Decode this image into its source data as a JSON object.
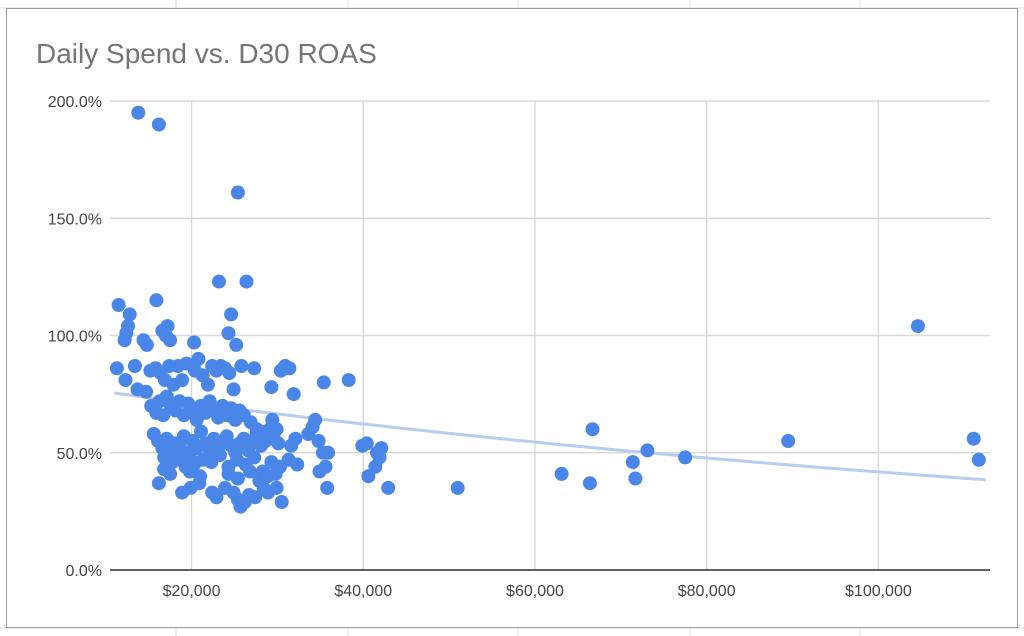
{
  "chart_data": {
    "type": "scatter",
    "title": "Daily Spend vs. D30 ROAS",
    "xlabel": "",
    "ylabel": "",
    "x_ticks": [
      "$20,000",
      "$40,000",
      "$60,000",
      "$80,000",
      "$100,000"
    ],
    "x_tick_values": [
      20000,
      40000,
      60000,
      80000,
      100000
    ],
    "y_ticks": [
      "0.0%",
      "50.0%",
      "100.0%",
      "150.0%",
      "200.0%"
    ],
    "y_tick_values": [
      0,
      50,
      100,
      150,
      200
    ],
    "xlim": [
      10500,
      113000
    ],
    "ylim": [
      0,
      200
    ],
    "grid": true,
    "legend": "none",
    "colors": {
      "points": "#4a86e8",
      "trendline": "#b7cdf2",
      "grid": "#d9d9d9",
      "axis": "#333333",
      "title": "#757575"
    },
    "trendline": {
      "type": "exponential",
      "x": [
        11000,
        112500
      ],
      "y": [
        75.5,
        38.5
      ]
    },
    "series": [
      {
        "points": [
          [
            13800,
            195
          ],
          [
            16200,
            190
          ],
          [
            25400,
            161
          ],
          [
            23200,
            123
          ],
          [
            26400,
            123
          ],
          [
            24600,
            109
          ],
          [
            24300,
            101
          ],
          [
            25200,
            96
          ],
          [
            20300,
            97
          ],
          [
            11500,
            113
          ],
          [
            12800,
            109
          ],
          [
            12600,
            104
          ],
          [
            12400,
            101
          ],
          [
            12200,
            98
          ],
          [
            14400,
            98
          ],
          [
            14800,
            96
          ],
          [
            15900,
            115
          ],
          [
            16600,
            102
          ],
          [
            17200,
            104
          ],
          [
            17500,
            98
          ],
          [
            17000,
            100
          ],
          [
            11300,
            86
          ],
          [
            12300,
            81
          ],
          [
            13400,
            87
          ],
          [
            13700,
            77
          ],
          [
            14700,
            76
          ],
          [
            15200,
            85
          ],
          [
            15800,
            86
          ],
          [
            16400,
            84
          ],
          [
            16900,
            81
          ],
          [
            17400,
            87
          ],
          [
            17900,
            79
          ],
          [
            18400,
            87
          ],
          [
            18900,
            81
          ],
          [
            19400,
            88
          ],
          [
            20400,
            85
          ],
          [
            20800,
            90
          ],
          [
            21300,
            83
          ],
          [
            21900,
            79
          ],
          [
            22400,
            87
          ],
          [
            22900,
            85
          ],
          [
            23400,
            87
          ],
          [
            23900,
            86
          ],
          [
            24400,
            84
          ],
          [
            24900,
            77
          ],
          [
            25800,
            87
          ],
          [
            27300,
            86
          ],
          [
            29300,
            78
          ],
          [
            30400,
            85
          ],
          [
            30900,
            87
          ],
          [
            31400,
            86
          ],
          [
            31900,
            75
          ],
          [
            35400,
            80
          ],
          [
            38300,
            81
          ],
          [
            15300,
            70
          ],
          [
            15900,
            67
          ],
          [
            16300,
            72
          ],
          [
            16700,
            66
          ],
          [
            17100,
            74
          ],
          [
            17600,
            70
          ],
          [
            18100,
            68
          ],
          [
            18600,
            72
          ],
          [
            19100,
            66
          ],
          [
            19600,
            71
          ],
          [
            20100,
            68
          ],
          [
            20600,
            64
          ],
          [
            21100,
            70
          ],
          [
            21600,
            67
          ],
          [
            22100,
            72
          ],
          [
            22600,
            68
          ],
          [
            23100,
            65
          ],
          [
            23600,
            70
          ],
          [
            24100,
            66
          ],
          [
            24600,
            69
          ],
          [
            25100,
            64
          ],
          [
            25600,
            68
          ],
          [
            26100,
            66
          ],
          [
            26900,
            63
          ],
          [
            27600,
            60
          ],
          [
            28600,
            59
          ],
          [
            29400,
            64
          ],
          [
            29900,
            60
          ],
          [
            15600,
            58
          ],
          [
            16100,
            55
          ],
          [
            16600,
            52
          ],
          [
            17100,
            56
          ],
          [
            17600,
            50
          ],
          [
            18100,
            54
          ],
          [
            18600,
            53
          ],
          [
            19100,
            57
          ],
          [
            19600,
            50
          ],
          [
            20100,
            55
          ],
          [
            20600,
            52
          ],
          [
            21100,
            59
          ],
          [
            21600,
            54
          ],
          [
            22100,
            51
          ],
          [
            22600,
            56
          ],
          [
            23100,
            52
          ],
          [
            23600,
            55
          ],
          [
            24100,
            57
          ],
          [
            24600,
            53
          ],
          [
            25100,
            50
          ],
          [
            25600,
            54
          ],
          [
            26100,
            56
          ],
          [
            26600,
            51
          ],
          [
            27100,
            55
          ],
          [
            27600,
            58
          ],
          [
            28100,
            53
          ],
          [
            28600,
            55
          ],
          [
            29100,
            60
          ],
          [
            29600,
            56
          ],
          [
            30100,
            54
          ],
          [
            31600,
            53
          ],
          [
            32100,
            56
          ],
          [
            33600,
            58
          ],
          [
            34100,
            61
          ],
          [
            34400,
            64
          ],
          [
            34800,
            55
          ],
          [
            35300,
            50
          ],
          [
            35900,
            50
          ],
          [
            39900,
            53
          ],
          [
            40400,
            54
          ],
          [
            41600,
            50
          ],
          [
            42100,
            52
          ],
          [
            16800,
            48
          ],
          [
            17300,
            45
          ],
          [
            17800,
            46
          ],
          [
            18300,
            49
          ],
          [
            18800,
            47
          ],
          [
            19300,
            44
          ],
          [
            19800,
            48
          ],
          [
            20300,
            45
          ],
          [
            21300,
            47
          ],
          [
            22300,
            46
          ],
          [
            23300,
            49
          ],
          [
            24300,
            44
          ],
          [
            25300,
            47
          ],
          [
            26300,
            45
          ],
          [
            27300,
            48
          ],
          [
            28300,
            42
          ],
          [
            29300,
            46
          ],
          [
            30300,
            44
          ],
          [
            31300,
            47
          ],
          [
            32300,
            45
          ],
          [
            16800,
            43
          ],
          [
            17500,
            41
          ],
          [
            19800,
            42
          ],
          [
            21000,
            40
          ],
          [
            24300,
            41
          ],
          [
            25400,
            39
          ],
          [
            26800,
            42
          ],
          [
            27900,
            38
          ],
          [
            28900,
            40
          ],
          [
            29800,
            41
          ],
          [
            34900,
            42
          ],
          [
            35600,
            44
          ],
          [
            40600,
            40
          ],
          [
            41400,
            44
          ],
          [
            41900,
            48
          ],
          [
            16200,
            37
          ],
          [
            18900,
            33
          ],
          [
            19900,
            35
          ],
          [
            20900,
            37
          ],
          [
            22400,
            33
          ],
          [
            22900,
            31
          ],
          [
            23900,
            35
          ],
          [
            24900,
            33
          ],
          [
            25400,
            30
          ],
          [
            25700,
            27
          ],
          [
            26200,
            29
          ],
          [
            26700,
            32
          ],
          [
            27400,
            31
          ],
          [
            28400,
            35
          ],
          [
            28900,
            33
          ],
          [
            29900,
            35
          ],
          [
            30500,
            29
          ],
          [
            35800,
            35
          ],
          [
            42900,
            35
          ],
          [
            51000,
            35
          ],
          [
            63100,
            41
          ],
          [
            66400,
            37
          ],
          [
            66700,
            60
          ],
          [
            71400,
            46
          ],
          [
            71700,
            39
          ],
          [
            73100,
            51
          ],
          [
            77500,
            48
          ],
          [
            89500,
            55
          ],
          [
            104600,
            104
          ],
          [
            111100,
            56
          ],
          [
            111700,
            47
          ]
        ]
      }
    ]
  }
}
